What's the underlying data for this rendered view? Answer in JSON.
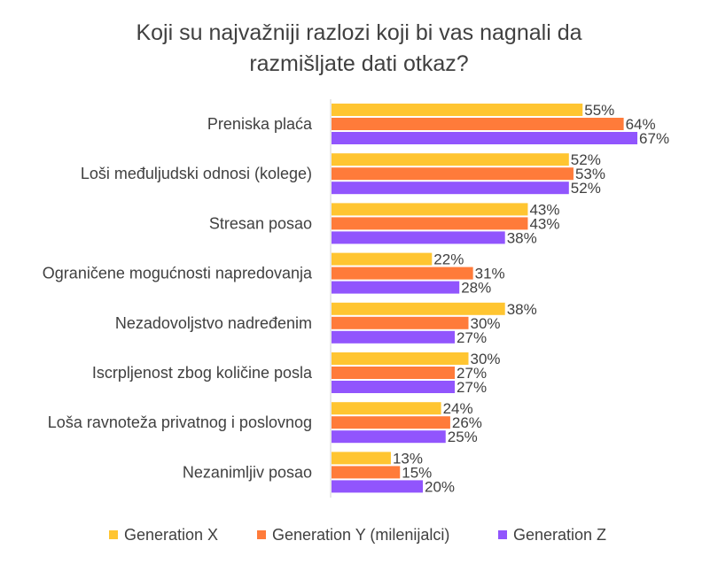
{
  "chart_data": {
    "type": "bar",
    "orientation": "horizontal",
    "title": [
      "Koji su najvažniji razlozi koji bi vas nagnali da",
      "razmišljate dati otkaz?"
    ],
    "categories": [
      "Preniska plaća",
      "Loši međuljudski odnosi (kolege)",
      "Stresan posao",
      "Ograničene mogućnosti napredovanja",
      "Nezadovoljstvo nadređenim",
      "Iscrpljenost zbog količine posla",
      "Loša ravnoteža privatnog i poslovnog",
      "Nezanimljiv posao"
    ],
    "series": [
      {
        "name": "Generation X",
        "color": "#FFC531",
        "values": [
          55,
          52,
          43,
          22,
          38,
          30,
          24,
          13
        ]
      },
      {
        "name": "Generation Y (milenijalci)",
        "color": "#FF7B3A",
        "values": [
          64,
          53,
          43,
          31,
          30,
          27,
          26,
          15
        ]
      },
      {
        "name": "Generation Z",
        "color": "#9155FD",
        "values": [
          67,
          52,
          38,
          28,
          27,
          27,
          25,
          20
        ]
      }
    ],
    "value_suffix": "%",
    "xlim": [
      0,
      100
    ],
    "grid": false,
    "legend_position": "bottom"
  }
}
